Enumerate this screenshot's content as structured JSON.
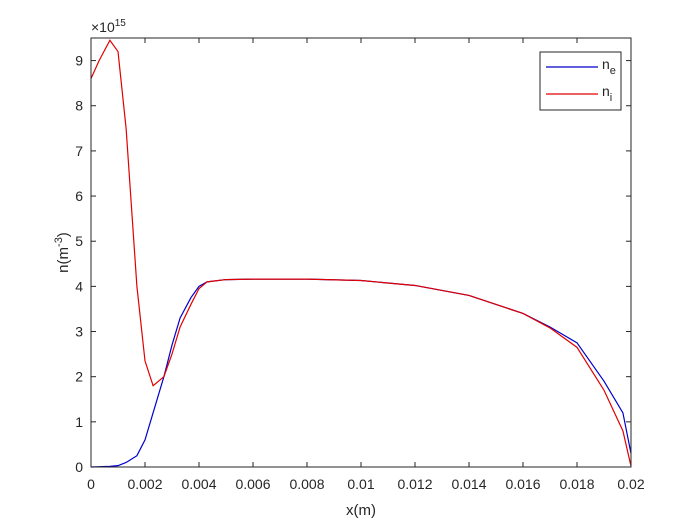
{
  "chart_data": {
    "type": "line",
    "xlabel": "x(m)",
    "ylabel": [
      "n(m",
      "-3",
      ")"
    ],
    "y_exponent": [
      "×10",
      "15"
    ],
    "x": [
      0,
      0.0003,
      0.0007,
      0.001,
      0.0013,
      0.0017,
      0.002,
      0.0023,
      0.0027,
      0.003,
      0.0033,
      0.0037,
      0.004,
      0.0043,
      0.005,
      0.006,
      0.008,
      0.01,
      0.012,
      0.014,
      0.016,
      0.017,
      0.018,
      0.019,
      0.0197,
      0.02
    ],
    "series": [
      {
        "name": "n",
        "name_sub": "e",
        "color": "#0000cc",
        "values": [
          0,
          5000000000000.0,
          15000000000000.0,
          30000000000000.0,
          100000000000000.0,
          250000000000000.0,
          600000000000000.0,
          1200000000000000.0,
          2000000000000000.0,
          2700000000000000.0,
          3300000000000000.0,
          3750000000000000.0,
          4000000000000000.0,
          4100000000000000.0,
          4150000000000000.0,
          4160000000000000.0,
          4160000000000000.0,
          4130000000000000.0,
          4020000000000000.0,
          3800000000000000.0,
          3400000000000000.0,
          3100000000000000.0,
          2750000000000000.0,
          1900000000000000.0,
          1200000000000000.0,
          300000000000000.0
        ]
      },
      {
        "name": "n",
        "name_sub": "i",
        "color": "#e00000",
        "values": [
          8600000000000000.0,
          9000000000000000.0,
          9450000000000000.0,
          9200000000000000.0,
          7500000000000000.0,
          4000000000000000.0,
          2350000000000000.0,
          1800000000000000.0,
          2000000000000000.0,
          2500000000000000.0,
          3100000000000000.0,
          3600000000000000.0,
          3950000000000000.0,
          4100000000000000.0,
          4150000000000000.0,
          4160000000000000.0,
          4160000000000000.0,
          4130000000000000.0,
          4020000000000000.0,
          3800000000000000.0,
          3400000000000000.0,
          3080000000000000.0,
          2650000000000000.0,
          1700000000000000.0,
          800000000000000.0,
          20000000000000.0
        ]
      }
    ],
    "xlim": [
      0,
      0.02
    ],
    "xticks": [
      0,
      0.002,
      0.004,
      0.006,
      0.008,
      0.01,
      0.012,
      0.014,
      0.016,
      0.018,
      0.02
    ],
    "ylim": [
      0,
      9500000000000000.0
    ],
    "yticks": [
      {
        "value": 0,
        "label": "0"
      },
      {
        "value": 1000000000000000.0,
        "label": "1"
      },
      {
        "value": 2000000000000000.0,
        "label": "2"
      },
      {
        "value": 3000000000000000.0,
        "label": "3"
      },
      {
        "value": 4000000000000000.0,
        "label": "4"
      },
      {
        "value": 5000000000000000.0,
        "label": "5"
      },
      {
        "value": 6000000000000000.0,
        "label": "6"
      },
      {
        "value": 7000000000000000.0,
        "label": "7"
      },
      {
        "value": 8000000000000000.0,
        "label": "8"
      },
      {
        "value": 9000000000000000.0,
        "label": "9"
      }
    ],
    "legend": "northeast",
    "grid": false
  }
}
